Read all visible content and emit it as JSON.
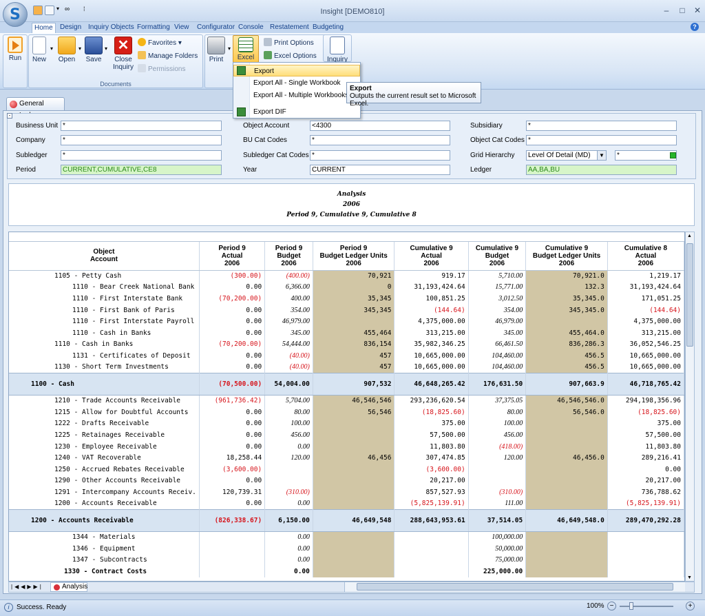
{
  "window": {
    "title": "Insight [DEMO810]",
    "min": "–",
    "max": "□",
    "close": "✕"
  },
  "ribbon_tabs": [
    "Home",
    "Design",
    "Inquiry Objects",
    "Formatting",
    "View",
    "Configurator",
    "Console",
    "Restatement",
    "Budgeting"
  ],
  "ribbon": {
    "run": "Run",
    "new": "New",
    "open": "Open",
    "save": "Save",
    "close_inquiry_1": "Close",
    "close_inquiry_2": "Inquiry",
    "favorites": "Favorites",
    "manage_folders": "Manage Folders",
    "permissions": "Permissions",
    "documents_group": "Documents",
    "print": "Print",
    "excel": "Excel",
    "print_options": "Print Options",
    "excel_options": "Excel Options",
    "inquiry": "Inquiry"
  },
  "excel_menu": {
    "items": [
      "Export",
      "Export All - Single Workbook",
      "Export All - Multiple Workbooks",
      "Export DIF"
    ]
  },
  "tooltip": {
    "title": "Export",
    "text": "Outputs the current result set to Microsoft Excel."
  },
  "document_tab": "General Ledger",
  "filters": {
    "business_unit": {
      "label": "Business Unit",
      "value": "*"
    },
    "company": {
      "label": "Company",
      "value": "*"
    },
    "subledger": {
      "label": "Subledger",
      "value": "*"
    },
    "period": {
      "label": "Period",
      "value": "CURRENT,CUMULATIVE,CE8"
    },
    "object_account": {
      "label": "Object Account",
      "value": "<4300"
    },
    "bu_cat_codes": {
      "label": "BU Cat Codes",
      "value": "*"
    },
    "subledger_cat_codes": {
      "label": "Subledger Cat Codes",
      "value": "*"
    },
    "year": {
      "label": "Year",
      "value": "CURRENT"
    },
    "subsidiary": {
      "label": "Subsidiary",
      "value": "*"
    },
    "object_cat_codes": {
      "label": "Object Cat Codes",
      "value": "*"
    },
    "grid_hierarchy": {
      "label": "Grid Hierarchy",
      "value": "Level Of Detail (MD)",
      "value2": "*"
    },
    "ledger": {
      "label": "Ledger",
      "value": "AA,BA,BU"
    }
  },
  "report": {
    "line1": "Analysis",
    "line2": "2006",
    "line3": "Period 9, Cumulative 9, Cumulative 8"
  },
  "grid": {
    "headers": [
      [
        "Object",
        "Account"
      ],
      [
        "Period 9",
        "Actual",
        "2006"
      ],
      [
        "Period 9",
        "Budget",
        "2006"
      ],
      [
        "Period 9",
        "Budget Ledger Units",
        "2006"
      ],
      [
        "Cumulative 9",
        "Actual",
        "2006"
      ],
      [
        "Cumulative 9",
        "Budget",
        "2006"
      ],
      [
        "Cumulative 9",
        "Budget Ledger Units",
        "2006"
      ],
      [
        "Cumulative 8",
        "Actual",
        "2006"
      ]
    ],
    "rows": [
      {
        "name": "1105 - Petty Cash",
        "indent": 1,
        "v": [
          "(300.00)",
          "(400.00)",
          "70,921",
          "919.17",
          "5,710.00",
          "70,921.0",
          "1,219.17"
        ]
      },
      {
        "name": "1110 - Bear Creek National Bank",
        "indent": 2,
        "v": [
          "0.00",
          "6,366.00",
          "0",
          "31,193,424.64",
          "15,771.00",
          "132.3",
          "31,193,424.64"
        ]
      },
      {
        "name": "1110 - First Interstate Bank",
        "indent": 2,
        "v": [
          "(70,200.00)",
          "400.00",
          "35,345",
          "100,851.25",
          "3,012.50",
          "35,345.0",
          "171,051.25"
        ]
      },
      {
        "name": "1110 - First Bank of Paris",
        "indent": 2,
        "v": [
          "0.00",
          "354.00",
          "345,345",
          "(144.64)",
          "354.00",
          "345,345.0",
          "(144.64)"
        ]
      },
      {
        "name": "1110 - First Interstate Payroll",
        "indent": 2,
        "v": [
          "0.00",
          "46,979.00",
          "",
          "4,375,000.00",
          "46,979.00",
          "",
          "4,375,000.00"
        ]
      },
      {
        "name": "1110 - Cash in Banks",
        "indent": 2,
        "v": [
          "0.00",
          "345.00",
          "455,464",
          "313,215.00",
          "345.00",
          "455,464.0",
          "313,215.00"
        ]
      },
      {
        "name": "1110 - Cash in Banks",
        "indent": 1,
        "v": [
          "(70,200.00)",
          "54,444.00",
          "836,154",
          "35,982,346.25",
          "66,461.50",
          "836,286.3",
          "36,052,546.25"
        ]
      },
      {
        "name": "1131 - Certificates of Deposit",
        "indent": 2,
        "v": [
          "0.00",
          "(40.00)",
          "457",
          "10,665,000.00",
          "104,460.00",
          "456.5",
          "10,665,000.00"
        ]
      },
      {
        "name": "1130 - Short Term Investments",
        "indent": 1,
        "v": [
          "0.00",
          "(40.00)",
          "457",
          "10,665,000.00",
          "104,460.00",
          "456.5",
          "10,665,000.00"
        ]
      },
      {
        "name": "1100 - Cash",
        "indent": 0,
        "sub": true,
        "v": [
          "(70,500.00)",
          "54,004.00",
          "907,532",
          "46,648,265.42",
          "176,631.50",
          "907,663.9",
          "46,718,765.42"
        ]
      },
      {
        "name": "1210 - Trade Accounts Receivable",
        "indent": 1,
        "v": [
          "(961,736.42)",
          "5,704.00",
          "46,546,546",
          "293,236,620.54",
          "37,375.05",
          "46,546,546.0",
          "294,198,356.96"
        ]
      },
      {
        "name": "1215 - Allow for Doubtful Accounts",
        "indent": 1,
        "v": [
          "0.00",
          "80.00",
          "56,546",
          "(18,825.60)",
          "80.00",
          "56,546.0",
          "(18,825.60)"
        ]
      },
      {
        "name": "1222 - Drafts Receivable",
        "indent": 1,
        "v": [
          "0.00",
          "100.00",
          "",
          "375.00",
          "100.00",
          "",
          "375.00"
        ]
      },
      {
        "name": "1225 - Retainages Receivable",
        "indent": 1,
        "v": [
          "0.00",
          "456.00",
          "",
          "57,500.00",
          "456.00",
          "",
          "57,500.00"
        ]
      },
      {
        "name": "1230 - Employee Receivable",
        "indent": 1,
        "v": [
          "0.00",
          "0.00",
          "",
          "11,803.80",
          "(418.00)",
          "",
          "11,803.80"
        ]
      },
      {
        "name": "1240 - VAT Recoverable",
        "indent": 1,
        "v": [
          "18,258.44",
          "120.00",
          "46,456",
          "307,474.85",
          "120.00",
          "46,456.0",
          "289,216.41"
        ]
      },
      {
        "name": "1250 - Accrued Rebates Receivable",
        "indent": 1,
        "v": [
          "(3,600.00)",
          "",
          "",
          "(3,600.00)",
          "",
          "",
          "0.00"
        ]
      },
      {
        "name": "1290 - Other Accounts Receivable",
        "indent": 1,
        "v": [
          "0.00",
          "",
          "",
          "20,217.00",
          "",
          "",
          "20,217.00"
        ]
      },
      {
        "name": "1291 - Intercompany Accounts Receiv.",
        "indent": 1,
        "v": [
          "120,739.31",
          "(310.00)",
          "",
          "857,527.93",
          "(310.00)",
          "",
          "736,788.62"
        ]
      },
      {
        "name": "1200 - Accounts Receivable",
        "indent": 1,
        "v": [
          "0.00",
          "0.00",
          "",
          "(5,825,139.91)",
          "111.00",
          "",
          "(5,825,139.91)"
        ]
      },
      {
        "name": "1200 - Accounts Receivable",
        "indent": 0,
        "sub": true,
        "v": [
          "(826,338.67)",
          "6,150.00",
          "46,649,548",
          "288,643,953.61",
          "37,514.05",
          "46,649,548.0",
          "289,470,292.28"
        ]
      },
      {
        "name": "1344 - Materials",
        "indent": 2,
        "v": [
          "",
          "0.00",
          "",
          "",
          "100,000.00",
          "",
          ""
        ]
      },
      {
        "name": "1346 - Equipment",
        "indent": 2,
        "v": [
          "",
          "0.00",
          "",
          "",
          "50,000.00",
          "",
          ""
        ]
      },
      {
        "name": "1347 - Subcontracts",
        "indent": 2,
        "v": [
          "",
          "0.00",
          "",
          "",
          "75,000.00",
          "",
          ""
        ]
      },
      {
        "name": "1330 - Contract Costs",
        "indent": 3,
        "bold": true,
        "v": [
          "",
          "0.00",
          "",
          "",
          "225,000.00",
          "",
          ""
        ]
      }
    ]
  },
  "sheet_tab": "Analysis",
  "status": {
    "text": "Success. Ready",
    "zoom": "100%"
  },
  "colors": {
    "negative": "#d6131a",
    "tan": "#d1c6a5",
    "subtotal": "#d7e4f2"
  }
}
